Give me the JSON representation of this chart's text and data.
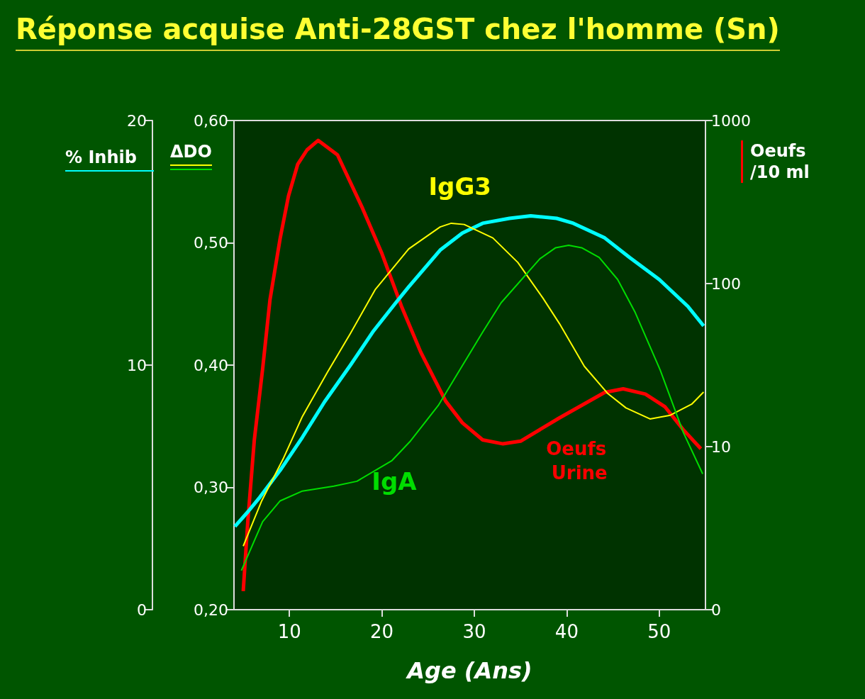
{
  "chart_data": {
    "type": "line",
    "title": "Réponse acquise Anti-28GST chez l'homme (Sn)",
    "xlabel": "Age (Ans)",
    "ylabel": "ΔDO",
    "y2label": "Oeufs /10 ml",
    "y3label": "% Inhib",
    "xlim": [
      4,
      55
    ],
    "xticks": [
      10,
      20,
      30,
      40,
      50
    ],
    "ylim": [
      0.2,
      0.6
    ],
    "yticks": [
      {
        "value": 0.2,
        "label": "0,20"
      },
      {
        "value": 0.3,
        "label": "0,30"
      },
      {
        "value": 0.4,
        "label": "0,40"
      },
      {
        "value": 0.5,
        "label": "0,50"
      },
      {
        "value": 0.6,
        "label": "0,60"
      }
    ],
    "y2lim": [
      0,
      1000
    ],
    "y2ticks": [
      0,
      10,
      100,
      1000
    ],
    "log": "y2",
    "y3lim": [
      0,
      20
    ],
    "y3ticks": [
      0,
      10,
      20
    ],
    "series": [
      {
        "name": "Oeufs Urine",
        "color": "#ff0000",
        "axis": "y2",
        "x": [
          5.0,
          5.5,
          6.2,
          7.1,
          7.9,
          9.0,
          9.9,
          10.9,
          11.9,
          13.1,
          15.2,
          17.9,
          20,
          22.1,
          24.2,
          26.9,
          28.7,
          30.9,
          33.1,
          35,
          39.2,
          44.1,
          46.1,
          48.5,
          50.6,
          52.6,
          54.5
        ],
        "values": [
          1.3,
          3.5,
          11,
          30,
          80,
          190,
          345,
          540,
          660,
          755,
          615,
          290,
          153,
          73,
          38,
          19,
          14,
          11,
          10.4,
          10.8,
          15,
          21.5,
          22.6,
          21,
          17.6,
          12.7,
          9.7
        ]
      },
      {
        "color": "#00ffff",
        "axis": "y3",
        "x": [
          4.1,
          5.5,
          6.8,
          9,
          11.4,
          13.8,
          16.6,
          19.1,
          21.4,
          22.9,
          26.3,
          28.7,
          30.9,
          33.8,
          36.1,
          38.9,
          40.7,
          44.1,
          46.8,
          50,
          53.1,
          54.8
        ],
        "values": [
          3.4,
          4.0,
          4.6,
          5.7,
          7.05,
          8.5,
          10.0,
          11.4,
          12.5,
          13.2,
          14.7,
          15.4,
          15.8,
          16.0,
          16.1,
          16.0,
          15.8,
          15.2,
          14.4,
          13.5,
          12.4,
          11.6
        ]
      },
      {
        "name": "IgG3",
        "color": "#ffff00",
        "x": [
          5.0,
          7.0,
          9.3,
          11.4,
          14.1,
          16.6,
          19.3,
          22.9,
          26.3,
          27.5,
          28.9,
          32,
          34.7,
          37.4,
          39.2,
          41.9,
          44.4,
          46.4,
          49.0,
          51.2,
          53.5,
          54.8
        ],
        "values": [
          0.252,
          0.289,
          0.323,
          0.358,
          0.394,
          0.426,
          0.462,
          0.495,
          0.513,
          0.516,
          0.515,
          0.504,
          0.484,
          0.455,
          0.434,
          0.399,
          0.377,
          0.365,
          0.356,
          0.359,
          0.368,
          0.378
        ]
      },
      {
        "name": "IgA",
        "color": "#00dd00",
        "x": [
          4.8,
          7.1,
          9.0,
          11.4,
          14.8,
          17.3,
          21.1,
          23.1,
          26.1,
          28.9,
          30.9,
          32.9,
          37.1,
          38.8,
          40.2,
          41.6,
          43.5,
          45.5,
          47.4,
          50.1,
          52.6,
          54.7
        ],
        "values": [
          0.232,
          0.272,
          0.289,
          0.297,
          0.301,
          0.305,
          0.322,
          0.338,
          0.367,
          0.402,
          0.427,
          0.451,
          0.487,
          0.496,
          0.498,
          0.496,
          0.488,
          0.47,
          0.443,
          0.396,
          0.345,
          0.311
        ]
      }
    ]
  }
}
